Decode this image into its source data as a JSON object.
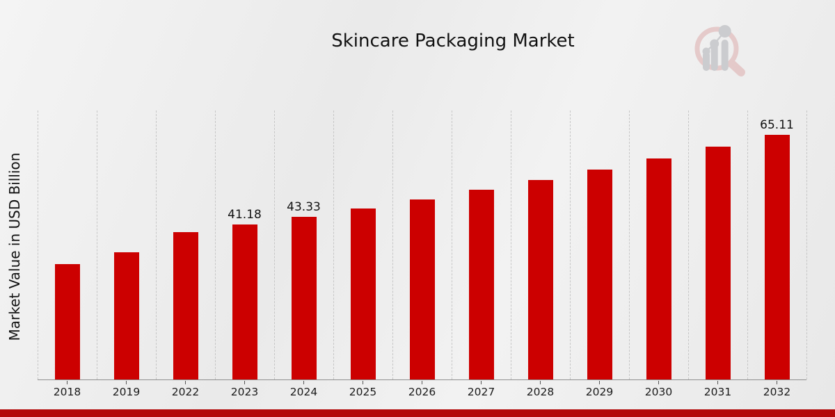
{
  "header": {
    "title": "Skincare Packaging Market"
  },
  "colors": {
    "bar": "#cc0000",
    "bottom_band": "#b30808",
    "grid": "#c6c6c6",
    "axis": "#8f8f8f",
    "text": "#111111",
    "logo_ring": "#e4c6c6",
    "logo_bars": "#c8c9cc"
  },
  "chart_data": {
    "type": "bar",
    "title": "Skincare Packaging Market",
    "xlabel": "",
    "ylabel": "Market Value in USD Billion",
    "categories": [
      "2018",
      "2019",
      "2022",
      "2023",
      "2024",
      "2025",
      "2026",
      "2027",
      "2028",
      "2029",
      "2030",
      "2031",
      "2032"
    ],
    "values": [
      30.8,
      33.9,
      39.3,
      41.18,
      43.33,
      45.6,
      48.0,
      50.5,
      53.1,
      55.9,
      58.9,
      62.0,
      65.11
    ],
    "data_labels": [
      null,
      null,
      null,
      "41.18",
      "43.33",
      null,
      null,
      null,
      null,
      null,
      null,
      null,
      "65.11"
    ],
    "ylim": [
      0,
      71.8
    ],
    "grid": "vertical-dashed",
    "legend": "none",
    "bar_color": "#cc0000"
  },
  "logo": {
    "name": "magnifier-bar-chart-logo"
  }
}
